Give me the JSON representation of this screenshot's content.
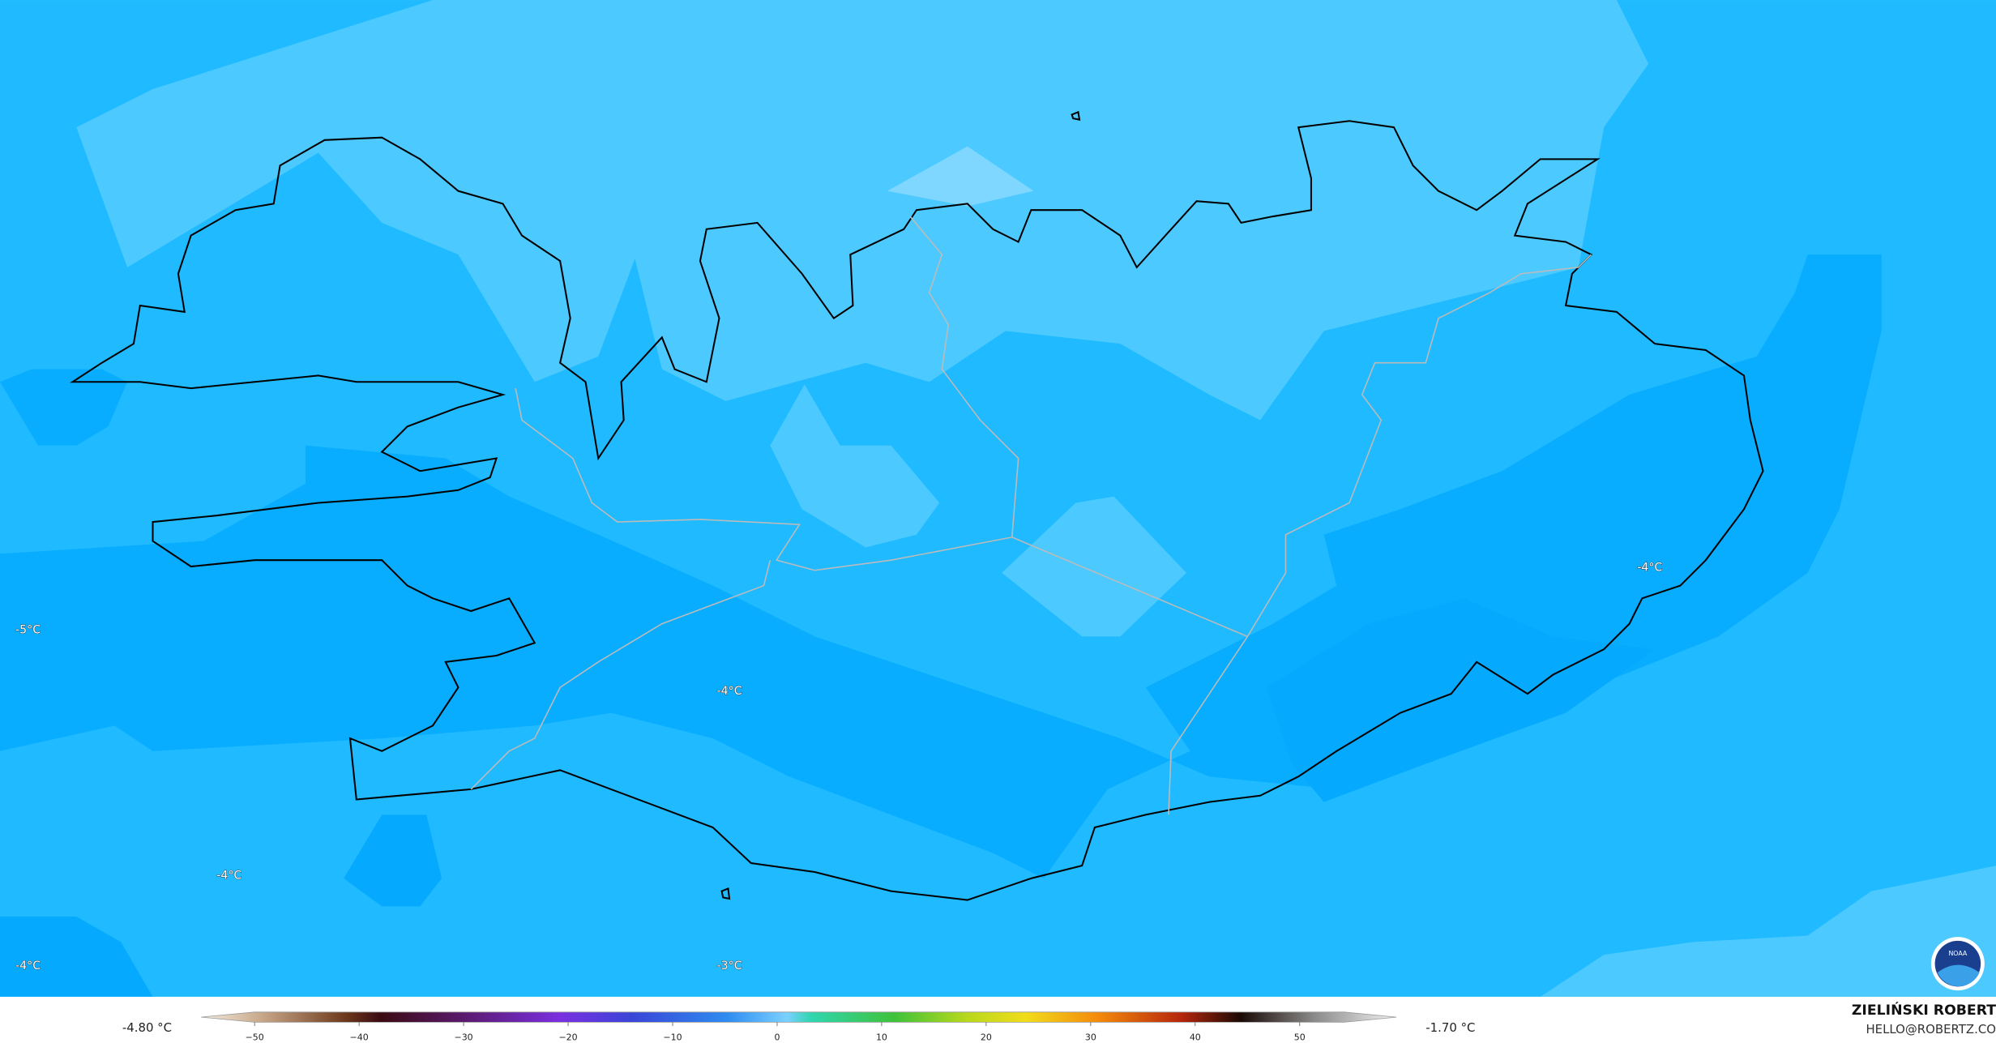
{
  "map": {
    "labels": [
      "-5°C",
      "-4°C",
      "-4°C",
      "-4°C",
      "-3°C",
      "-4°C"
    ]
  },
  "colorbar": {
    "min_label": "-4.80 °C",
    "max_label": "-1.70 °C",
    "ticks": [
      "−50",
      "−40",
      "−30",
      "−20",
      "−10",
      "0",
      "10",
      "20",
      "30",
      "40",
      "50"
    ]
  },
  "credit": {
    "name": "ZIELIŃSKI ROBERT",
    "email": "HELLO@ROBERTZ.CO"
  },
  "logo": "NOAA"
}
